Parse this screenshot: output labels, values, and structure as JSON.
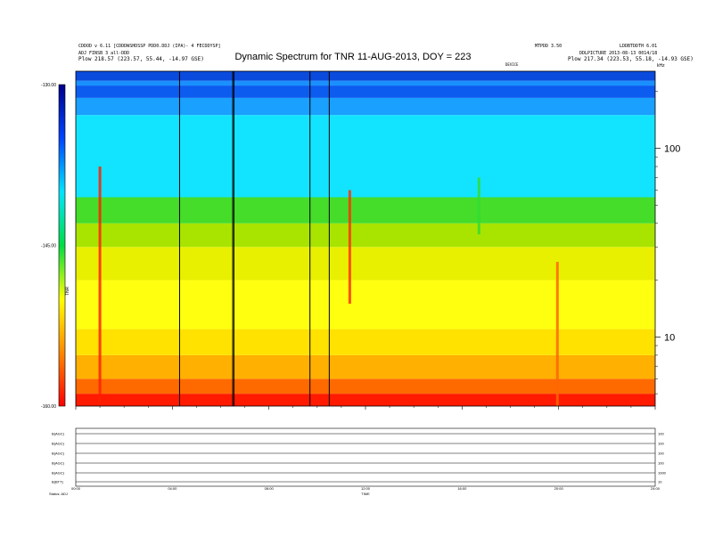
{
  "header": {
    "left_line1": "CDDOD v 6.11 [CDDDWSHDSSP PDD0.DDJ (IPA)- 4 FECDDYSP]",
    "left_line2": "ADJ FINSB 3 all-DDD",
    "left_line3": "Plow   218.57 (223.57, 55.44, -14.97 GSE)",
    "right_top_a": "MTPDD 3.50",
    "right_top_b": "LDDBTDDTH 6.01",
    "right_line2": "DDLPICTURE 2013-08-13 0014/18",
    "right_line3": "Plow   217.34 (223.53, 55.18, -14.93 GSE)",
    "right_small": "DEVICE"
  },
  "chart_data": {
    "type": "heatmap",
    "title": "Dynamic Spectrum for TNR 11-AUG-2013, DOY = 223",
    "colorbar": {
      "label": "TNR",
      "range": [
        -160.0,
        -130.0
      ],
      "tick_labels": [
        "-130.00",
        "-145.00",
        "-160.00"
      ],
      "ticks": [
        -130,
        -145,
        -160
      ],
      "colors": [
        "#ff0000",
        "#ff8800",
        "#ffff00",
        "#00dd44",
        "#00e5ff",
        "#0044ff",
        "#000088"
      ]
    },
    "x_axis": {
      "range_hours": [
        0,
        24
      ],
      "tick_labels": [
        "00:00",
        "04:00",
        "08:00",
        "12:00",
        "16:00",
        "20:00",
        "24:00"
      ]
    },
    "y_axis": {
      "scale": "log",
      "unit_label": "kHz",
      "range": [
        4.3,
        256
      ],
      "tick_labels": [
        "100",
        "10"
      ],
      "ticks": [
        100,
        10
      ]
    },
    "spectral_bands": [
      {
        "from": 4.3,
        "to": 5.0,
        "color": "#ff1a00"
      },
      {
        "from": 5.0,
        "to": 6.0,
        "color": "#ff6a00"
      },
      {
        "from": 6.0,
        "to": 8.0,
        "color": "#ffb000"
      },
      {
        "from": 8.0,
        "to": 11.0,
        "color": "#ffe200"
      },
      {
        "from": 11.0,
        "to": 20.0,
        "color": "#ffff10"
      },
      {
        "from": 20.0,
        "to": 30.0,
        "color": "#e8f000"
      },
      {
        "from": 30.0,
        "to": 40.0,
        "color": "#a8e400"
      },
      {
        "from": 40.0,
        "to": 55.0,
        "color": "#46dc2a"
      },
      {
        "from": 55.0,
        "to": 150.0,
        "color": "#12e4ff"
      },
      {
        "from": 150.0,
        "to": 185.0,
        "color": "#1aa0ff"
      },
      {
        "from": 185.0,
        "to": 215.0,
        "color": "#0d5cf0"
      },
      {
        "from": 215.0,
        "to": 228.0,
        "color": "#1a90ff"
      },
      {
        "from": 228.0,
        "to": 256.0,
        "color": "#0a4adc"
      }
    ],
    "data_gaps_hours": [
      4.3,
      6.5,
      6.55,
      9.7,
      10.5
    ],
    "bursts": [
      {
        "hour": 1.0,
        "f_low": 4.3,
        "f_high": 80,
        "color": "#ff2000"
      },
      {
        "hour": 11.35,
        "f_low": 15,
        "f_high": 60,
        "color": "#ff3300"
      },
      {
        "hour": 19.95,
        "f_low": 4.3,
        "f_high": 25,
        "color": "#ff6600"
      },
      {
        "hour": 16.7,
        "f_low": 35,
        "f_high": 70,
        "color": "#33dd33"
      }
    ]
  },
  "lower_panel": {
    "row_labels": [
      "B(AGC)",
      "B(AGC)",
      "B(AGC)",
      "B(AGC)",
      "B(AGC)",
      "B(BTT)"
    ],
    "right_values": [
      "100",
      "100",
      "100",
      "100",
      "1000",
      "10"
    ],
    "time_ticks": [
      "00:00",
      "04:00",
      "08:00",
      "12:00",
      "16:00",
      "20:00",
      "24:00"
    ],
    "center_label": "TIME",
    "footer_left": "Status:   ADJ"
  }
}
